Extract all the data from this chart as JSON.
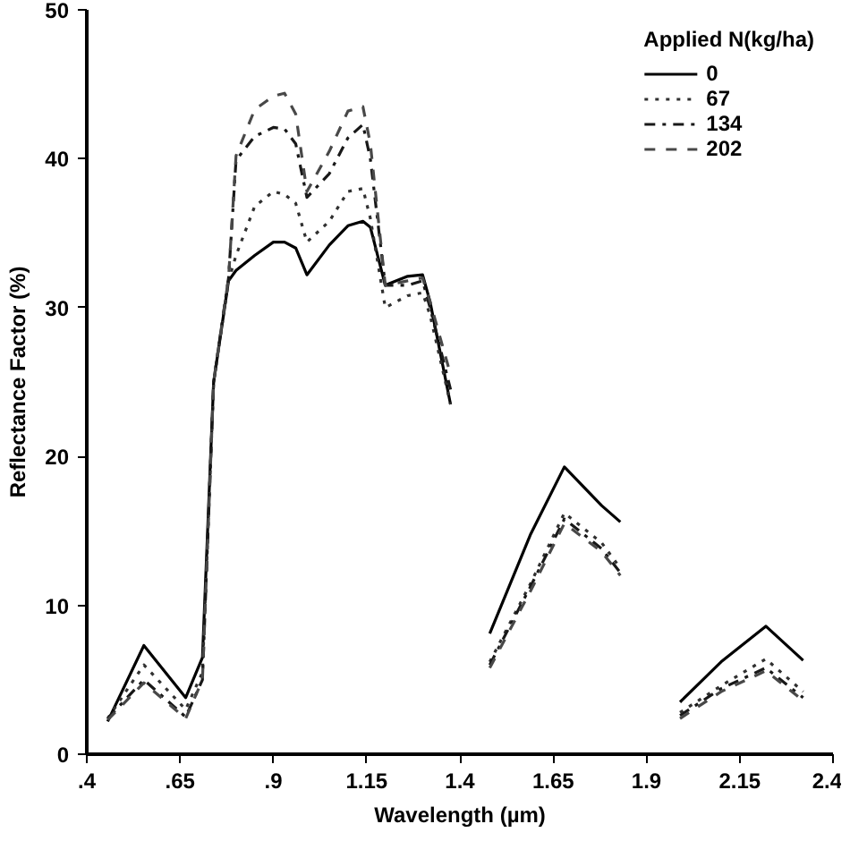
{
  "chart_data": {
    "type": "line",
    "xlabel": "Wavelength (µm)",
    "ylabel": "Reflectance Factor (%)",
    "legend_title": "Applied N(kg/ha)",
    "legend": "top right",
    "grid": false,
    "x": [
      0.456,
      0.553,
      0.665,
      0.71,
      0.74,
      0.78,
      0.8,
      0.85,
      0.9,
      0.93,
      0.96,
      0.99,
      1.05,
      1.1,
      1.14,
      1.16,
      1.2,
      1.26,
      1.3,
      1.32,
      1.375,
      1.43,
      1.48,
      1.59,
      1.68,
      1.78,
      1.83,
      1.9,
      1.99,
      2.1,
      2.22,
      2.32
    ],
    "xlim": [
      0.4,
      2.4
    ],
    "ylim": [
      0,
      50
    ],
    "xticks": [
      {
        "value": 0.4,
        "label": ".4"
      },
      {
        "value": 0.65,
        "label": ".65"
      },
      {
        "value": 0.9,
        "label": ".9"
      },
      1.15,
      1.4,
      1.65,
      1.9,
      2.15,
      2.4
    ],
    "yticks": [
      0,
      10,
      20,
      30,
      40,
      50
    ],
    "series": [
      {
        "name": "0",
        "color": "#000000",
        "line_style": "solid",
        "values": [
          2.2,
          7.3,
          3.8,
          6.5,
          25,
          31.8,
          32.5,
          33.5,
          34.4,
          34.4,
          34,
          32.2,
          34.2,
          35.5,
          35.8,
          35.4,
          31.5,
          32.1,
          32.2,
          30.4,
          23.5,
          null,
          8.1,
          14.8,
          19.3,
          16.7,
          15.6,
          null,
          3.5,
          6.2,
          8.6,
          6.3
        ]
      },
      {
        "name": "67",
        "color": "#303030",
        "line_style": "dotted",
        "values": [
          2.4,
          6.0,
          3.0,
          5.5,
          25,
          31.8,
          33.5,
          36.8,
          37.8,
          37.6,
          37,
          34.4,
          35.8,
          37.8,
          38,
          36,
          30,
          30.8,
          31,
          29.5,
          23.5,
          null,
          6.2,
          11.5,
          16.2,
          14.2,
          12.5,
          null,
          2.8,
          4.6,
          6.4,
          4.2
        ]
      },
      {
        "name": "134",
        "color": "#181818",
        "line_style": "dashdot",
        "values": [
          2.4,
          5.0,
          2.5,
          5.0,
          25,
          32,
          39.9,
          41.5,
          42.1,
          42,
          41,
          37.4,
          39,
          41.4,
          42.3,
          40,
          31.5,
          31.5,
          31.8,
          30,
          24.5,
          null,
          6.0,
          11.3,
          15.8,
          13.8,
          12.2,
          null,
          2.6,
          4.4,
          5.8,
          3.8
        ]
      },
      {
        "name": "202",
        "color": "#484848",
        "line_style": "dashed",
        "values": [
          2.3,
          4.8,
          2.4,
          5.0,
          25,
          32,
          40.2,
          43.3,
          44.2,
          44.4,
          43,
          37.8,
          40.5,
          43.2,
          43.5,
          41,
          31.5,
          31.8,
          32,
          30.4,
          25.5,
          null,
          5.8,
          11.0,
          15.5,
          13.6,
          12.0,
          null,
          2.4,
          4.2,
          5.6,
          3.6
        ]
      }
    ]
  }
}
